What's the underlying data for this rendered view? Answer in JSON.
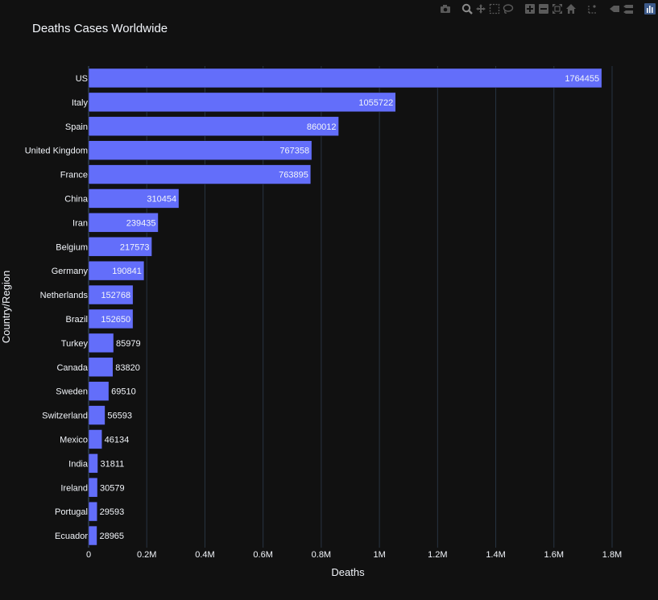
{
  "modebar": {
    "buttons": [
      {
        "icon": "camera-icon",
        "name": "download-png-button"
      },
      {
        "icon": "zoom-icon",
        "name": "zoom-button"
      },
      {
        "icon": "pan-icon",
        "name": "pan-button"
      },
      {
        "icon": "box-select-icon",
        "name": "box-select-button"
      },
      {
        "icon": "lasso-select-icon",
        "name": "lasso-select-button"
      },
      {
        "icon": "zoom-in-icon",
        "name": "zoom-in-button"
      },
      {
        "icon": "zoom-out-icon",
        "name": "zoom-out-button"
      },
      {
        "icon": "autoscale-icon",
        "name": "autoscale-button"
      },
      {
        "icon": "reset-axes-icon",
        "name": "reset-axes-button"
      },
      {
        "icon": "spike-lines-icon",
        "name": "spike-lines-button"
      },
      {
        "icon": "hover-closest-icon",
        "name": "hover-closest-button"
      },
      {
        "icon": "hover-compare-icon",
        "name": "hover-compare-button"
      },
      {
        "icon": "plotly-logo-icon",
        "name": "plotly-logo"
      }
    ]
  },
  "colors": {
    "background": "#111111",
    "bar_fill": "#636efa",
    "grid": "#283442",
    "text": "#f2f5fa"
  },
  "chart_data": {
    "type": "bar",
    "orientation": "horizontal",
    "title": "Deaths Cases Worldwide",
    "xlabel": "Deaths",
    "ylabel": "Country/Region",
    "xlim": [
      0,
      1800000
    ],
    "x_ticks": [
      0,
      200000,
      400000,
      600000,
      800000,
      1000000,
      1200000,
      1400000,
      1600000,
      1800000
    ],
    "x_tick_labels": [
      "0",
      "0.2M",
      "0.4M",
      "0.6M",
      "0.8M",
      "1M",
      "1.2M",
      "1.4M",
      "1.6M",
      "1.8M"
    ],
    "grid": true,
    "categories": [
      "US",
      "Italy",
      "Spain",
      "United Kingdom",
      "France",
      "China",
      "Iran",
      "Belgium",
      "Germany",
      "Netherlands",
      "Brazil",
      "Turkey",
      "Canada",
      "Sweden",
      "Switzerland",
      "Mexico",
      "India",
      "Ireland",
      "Portugal",
      "Ecuador"
    ],
    "values": [
      1764455,
      1055722,
      860012,
      767358,
      763895,
      310454,
      239435,
      217573,
      190841,
      152768,
      152650,
      85979,
      83820,
      69510,
      56593,
      46134,
      31811,
      30579,
      29593,
      28965
    ]
  }
}
